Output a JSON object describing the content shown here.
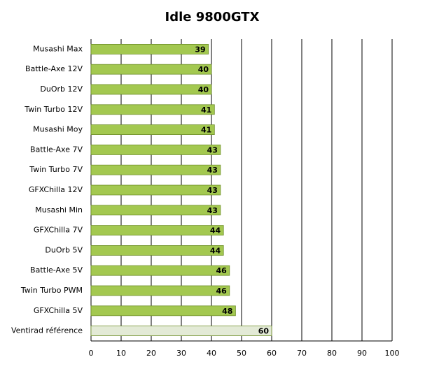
{
  "chart_data": {
    "type": "hbar",
    "title": "Idle 9800GTX",
    "categories": [
      "Musashi Max",
      "Battle-Axe 12V",
      "DuOrb 12V",
      "Twin Turbo 12V",
      "Musashi Moy",
      "Battle-Axe 7V",
      "Twin Turbo 7V",
      "GFXChilla 12V",
      "Musashi Min",
      "GFXChilla 7V",
      "DuOrb 5V",
      "Battle-Axe 5V",
      "Twin Turbo PWM",
      "GFXChilla 5V",
      "Ventirad référence"
    ],
    "values": [
      39,
      40,
      40,
      41,
      41,
      43,
      43,
      43,
      43,
      44,
      44,
      46,
      46,
      48,
      60
    ],
    "colors": [
      "#a3c850",
      "#a3c850",
      "#a3c850",
      "#a3c850",
      "#a3c850",
      "#a3c850",
      "#a3c850",
      "#a3c850",
      "#a3c850",
      "#a3c850",
      "#a3c850",
      "#a3c850",
      "#a3c850",
      "#a3c850",
      "#e3ead6"
    ],
    "xlim": [
      0,
      100
    ],
    "xticks": [
      0,
      10,
      20,
      30,
      40,
      50,
      60,
      70,
      80,
      90,
      100
    ],
    "grid": true
  }
}
